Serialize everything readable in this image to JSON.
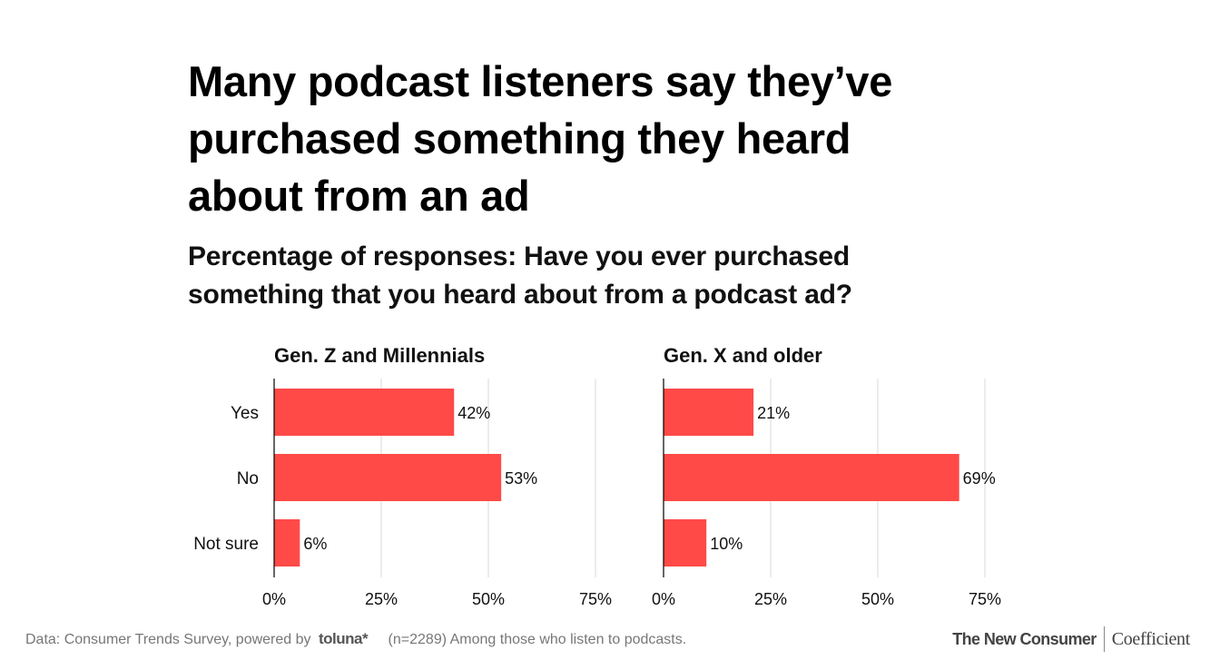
{
  "title_lines": [
    "Many podcast listeners say they’ve",
    "purchased something they heard",
    "about from an ad"
  ],
  "subtitle_lines": [
    "Percentage of responses: Have you ever purchased",
    "something that you heard about from a podcast ad?"
  ],
  "colors": {
    "bar": "#ff4a47",
    "grid": "#d9d9d9",
    "axis": "#000000",
    "text": "#111111"
  },
  "chart_data": [
    {
      "type": "bar",
      "orientation": "horizontal",
      "title": "Gen. Z and Millennials",
      "categories": [
        "Yes",
        "No",
        "Not sure"
      ],
      "values": [
        42,
        53,
        6
      ],
      "value_labels": [
        "42%",
        "53%",
        "6%"
      ],
      "xlim": [
        0,
        75
      ],
      "ticks": [
        0,
        25,
        50,
        75
      ],
      "tick_labels": [
        "0%",
        "25%",
        "50%",
        "75%"
      ],
      "grid": true
    },
    {
      "type": "bar",
      "orientation": "horizontal",
      "title": "Gen. X and older",
      "categories": [
        "Yes",
        "No",
        "Not sure"
      ],
      "values": [
        21,
        69,
        10
      ],
      "value_labels": [
        "21%",
        "69%",
        "10%"
      ],
      "xlim": [
        0,
        75
      ],
      "ticks": [
        0,
        25,
        50,
        75
      ],
      "tick_labels": [
        "0%",
        "25%",
        "50%",
        "75%"
      ],
      "grid": true
    }
  ],
  "footer": {
    "source_prefix": "Data: Consumer Trends Survey, powered by",
    "source_brand": "toluna",
    "source_brand_mark": "*",
    "sample_note": "(n=2289) Among those who listen to podcasts."
  },
  "logos": {
    "primary": "The New Consumer",
    "secondary": "Coefficient"
  }
}
